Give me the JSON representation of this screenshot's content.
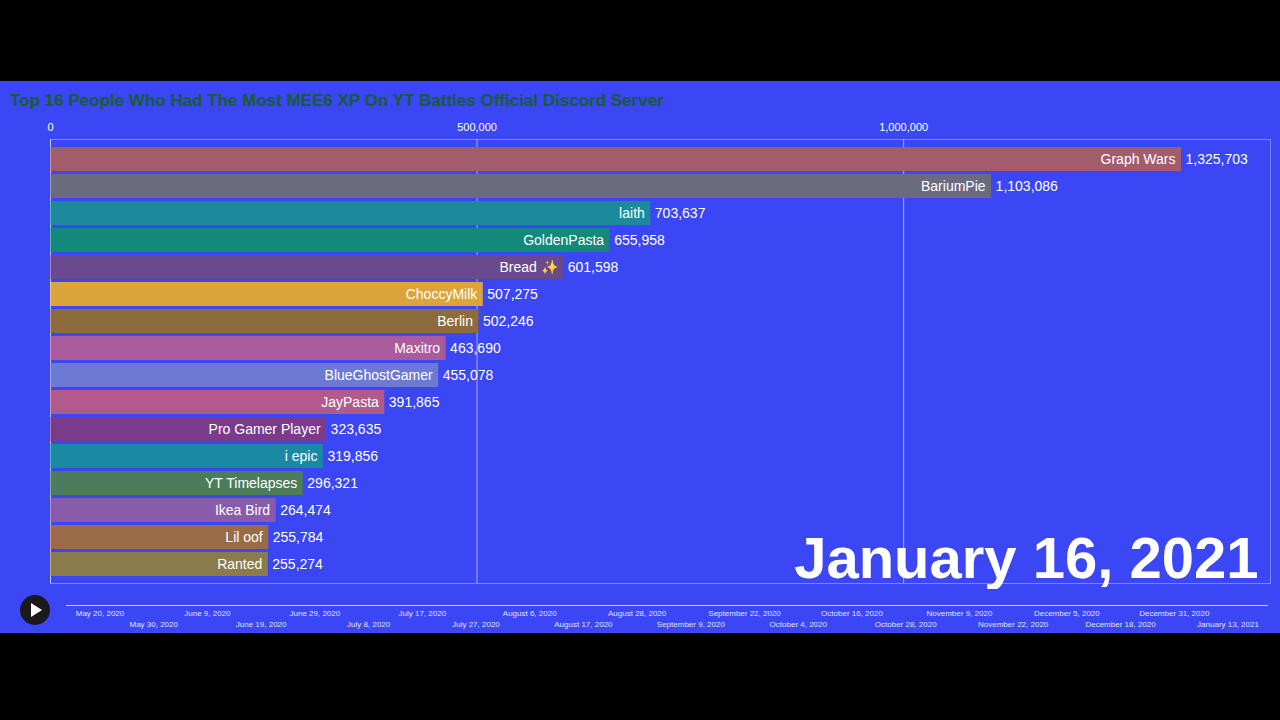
{
  "chart_data": {
    "type": "bar",
    "title": "Top 16 People Who Had The Most MEE6 XP On YT Battles Official Discord Server",
    "orientation": "horizontal",
    "categories": [
      "Graph Wars",
      "BariumPie",
      "laith",
      "GoldenPasta",
      "Bread ✨",
      "ChoccyMilk",
      "Berlin",
      "Maxitro",
      "BlueGhostGamer",
      "JayPasta",
      "Pro Gamer Player",
      "i epic",
      "YT Timelapses",
      "Ikea Bird",
      "Lil oof",
      "Ranted"
    ],
    "values": [
      1325703,
      1103086,
      703637,
      655958,
      601598,
      507275,
      502246,
      463690,
      455078,
      391865,
      323635,
      319856,
      296321,
      264474,
      255784,
      255274
    ],
    "value_labels": [
      "1,325,703",
      "1,103,086",
      "703,637",
      "655,958",
      "601,598",
      "507,275",
      "502,246",
      "463,690",
      "455,078",
      "391,865",
      "323,635",
      "319,856",
      "296,321",
      "264,474",
      "255,784",
      "255,274"
    ],
    "colors": [
      "#a35c6c",
      "#6b6b80",
      "#1a8a9c",
      "#14897a",
      "#6a4a8c",
      "#dca53b",
      "#8c6c3c",
      "#a95b9b",
      "#6d7ad4",
      "#b35a8c",
      "#7b3a8c",
      "#1a8aa2",
      "#4b7c5b",
      "#8b5bab",
      "#9b6b47",
      "#8b7b4b"
    ],
    "xlim": [
      0,
      1430000
    ],
    "xticks": [
      0,
      {
        "value": 500000,
        "label": "500,000"
      },
      {
        "value": 1000000,
        "label": "1,000,000"
      }
    ],
    "grid": true,
    "data_labels": true,
    "tick_labels": "x",
    "annotations": [
      "January 16, 2021"
    ],
    "timeline": [
      "May 20, 2020",
      "May 30, 2020",
      "June 9, 2020",
      "June 19, 2020",
      "June 29, 2020",
      "July 8, 2020",
      "July 17, 2020",
      "July 27, 2020",
      "August 6, 2020",
      "August 17, 2020",
      "August 28, 2020",
      "September 9, 2020",
      "September 22, 2020",
      "October 4, 2020",
      "October 16, 2020",
      "October 28, 2020",
      "November 9, 2020",
      "November 22, 2020",
      "December 5, 2020",
      "December 18, 2020",
      "December 31, 2020",
      "January 13, 2021"
    ]
  }
}
